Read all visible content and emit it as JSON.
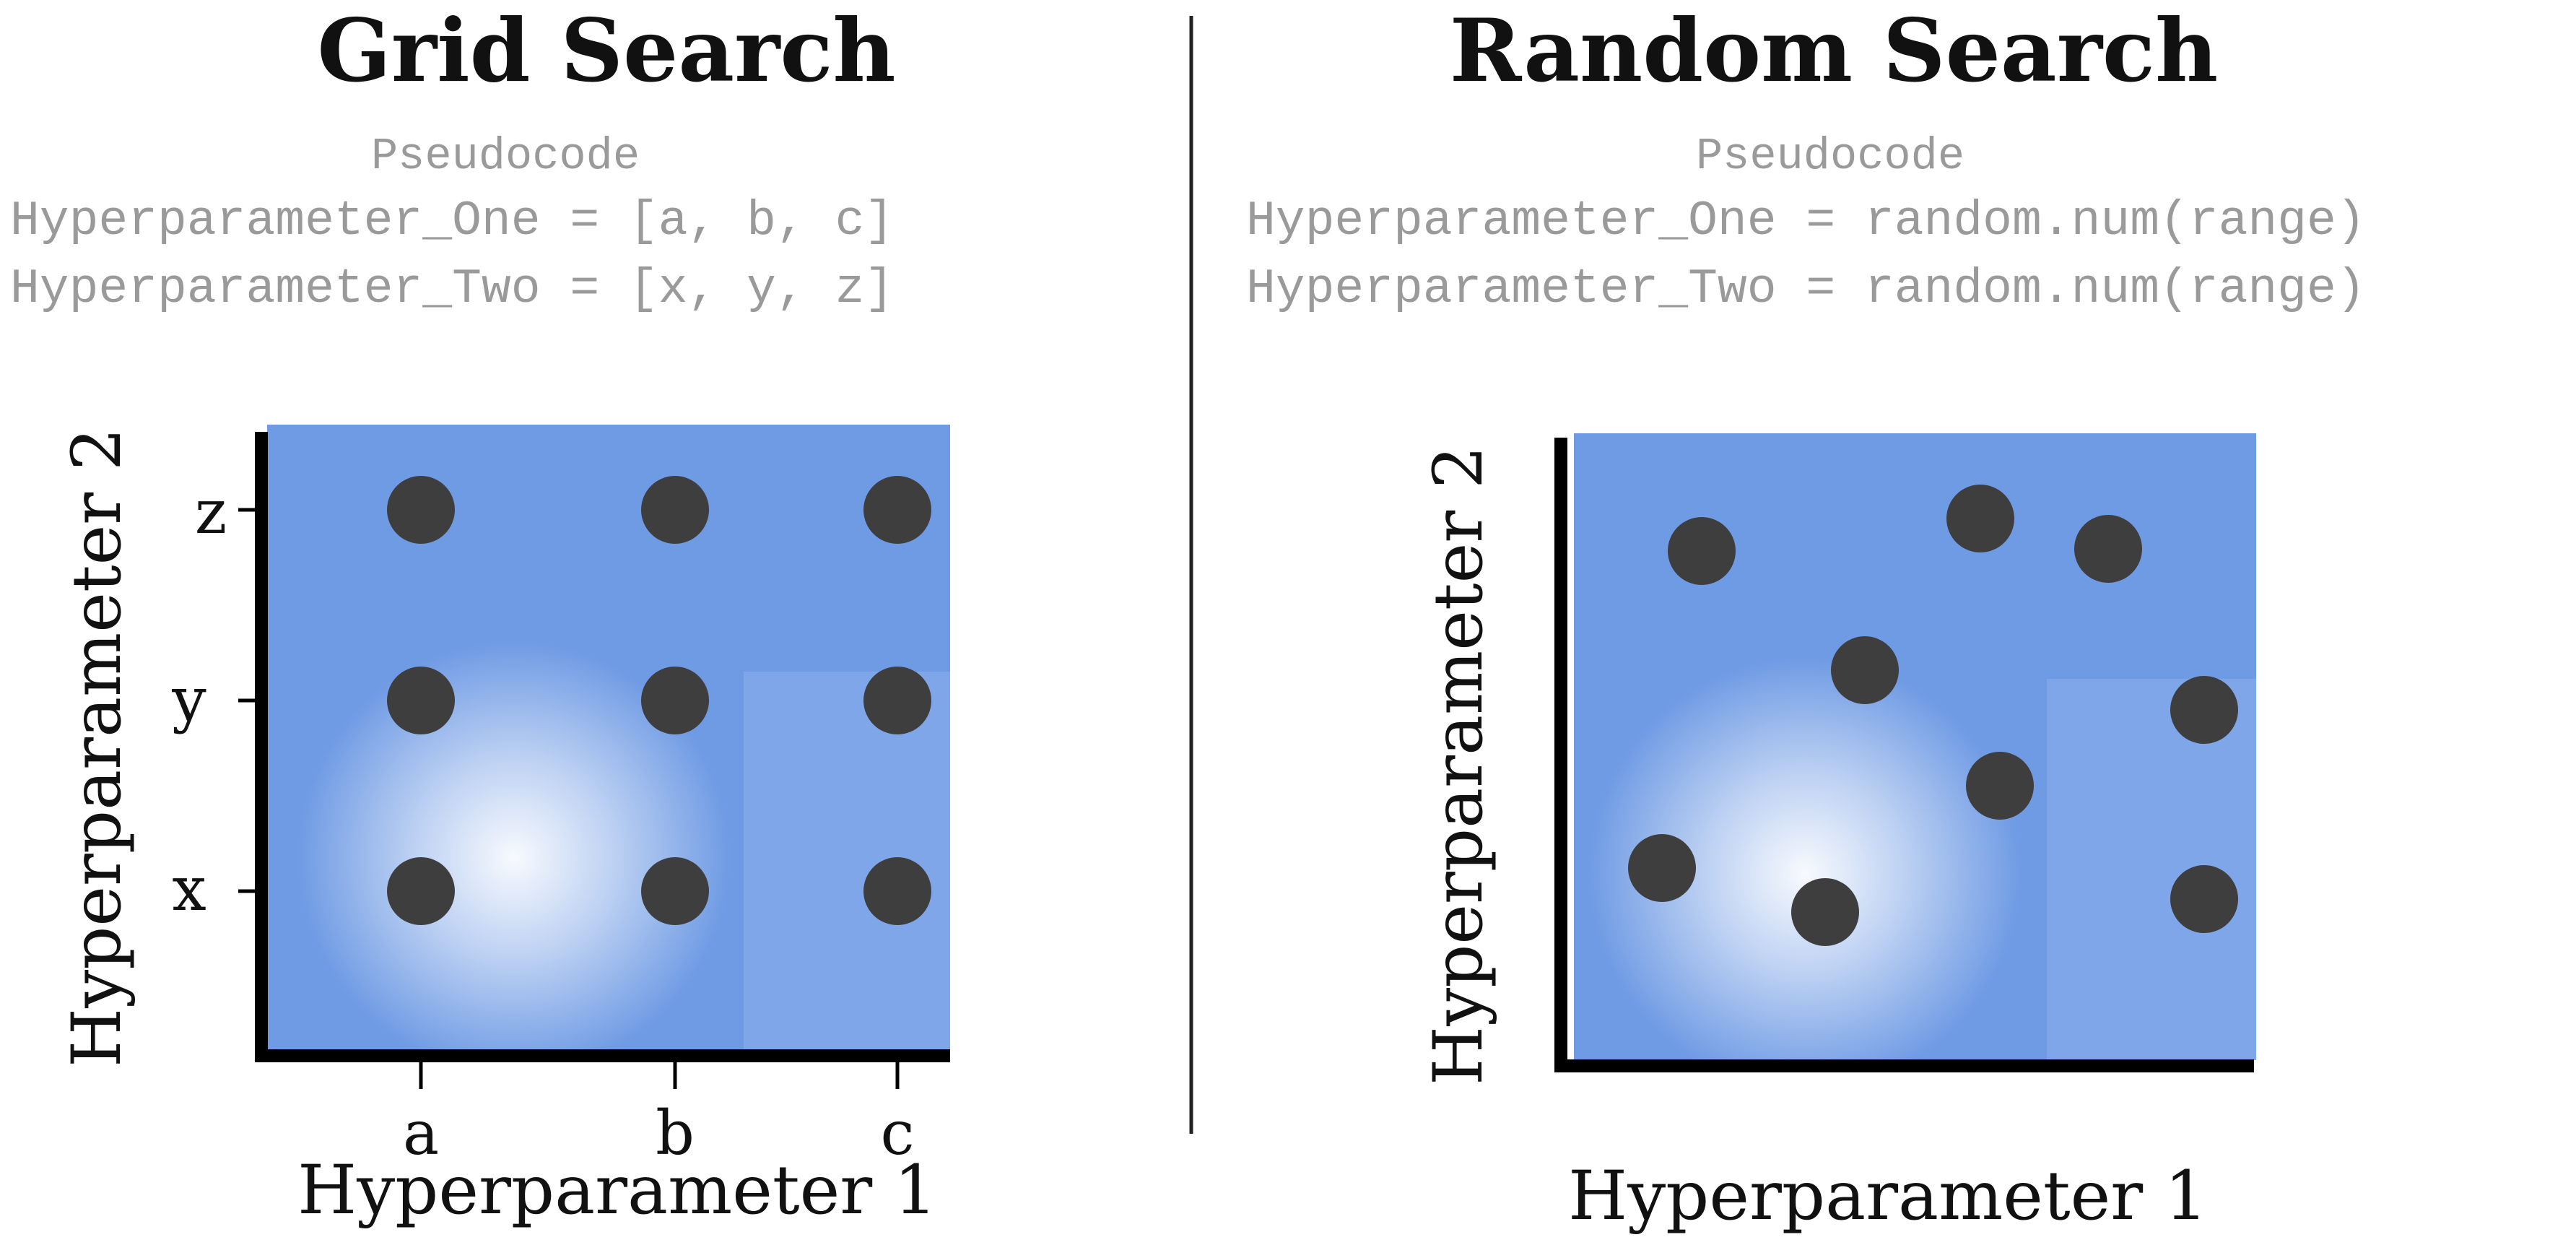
{
  "colors": {
    "plot_blue": "#6f9be4",
    "highlight": "#ffffff",
    "dot": "#3e3e3e",
    "axis": "#000000",
    "code_text": "#9a9a9a"
  },
  "grid_search": {
    "title": "Grid Search",
    "pseudocode_label": "Pseudocode",
    "code_lines": [
      "Hyperparameter_One = [a, b, c]",
      "Hyperparameter_Two = [x, y, z]"
    ],
    "x_axis_label": "Hyperparameter 1",
    "y_axis_label": "Hyperparameter 2",
    "x_ticks": [
      "a",
      "b",
      "c"
    ],
    "y_ticks": [
      "x",
      "y",
      "z"
    ]
  },
  "random_search": {
    "title": "Random Search",
    "pseudocode_label": "Pseudocode",
    "code_lines": [
      "Hyperparameter_One = random.num(range)",
      "Hyperparameter_Two = random.num(range)"
    ],
    "x_axis_label": "Hyperparameter 1",
    "y_axis_label": "Hyperparameter 2"
  }
}
